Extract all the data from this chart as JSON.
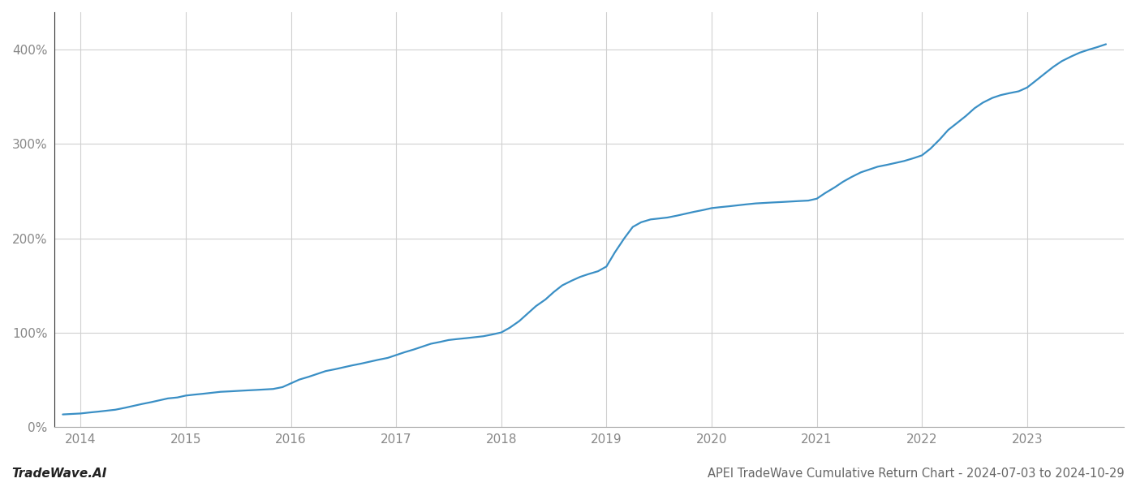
{
  "title": "APEI TradeWave Cumulative Return Chart - 2024-07-03 to 2024-10-29",
  "watermark": "TradeWave.AI",
  "line_color": "#3a8fc5",
  "line_width": 1.6,
  "background_color": "#ffffff",
  "grid_color": "#d0d0d0",
  "x_years": [
    2014,
    2015,
    2016,
    2017,
    2018,
    2019,
    2020,
    2021,
    2022,
    2023
  ],
  "x_data": [
    2013.83,
    2014.0,
    2014.08,
    2014.17,
    2014.25,
    2014.33,
    2014.42,
    2014.5,
    2014.58,
    2014.67,
    2014.75,
    2014.83,
    2014.92,
    2015.0,
    2015.08,
    2015.17,
    2015.25,
    2015.33,
    2015.42,
    2015.5,
    2015.58,
    2015.67,
    2015.75,
    2015.83,
    2015.92,
    2016.0,
    2016.08,
    2016.17,
    2016.25,
    2016.33,
    2016.42,
    2016.5,
    2016.58,
    2016.67,
    2016.75,
    2016.83,
    2016.92,
    2017.0,
    2017.08,
    2017.17,
    2017.25,
    2017.33,
    2017.42,
    2017.5,
    2017.58,
    2017.67,
    2017.75,
    2017.83,
    2017.92,
    2018.0,
    2018.08,
    2018.17,
    2018.25,
    2018.33,
    2018.42,
    2018.5,
    2018.58,
    2018.67,
    2018.75,
    2018.83,
    2018.92,
    2019.0,
    2019.08,
    2019.17,
    2019.25,
    2019.33,
    2019.42,
    2019.5,
    2019.58,
    2019.67,
    2019.75,
    2019.83,
    2019.92,
    2020.0,
    2020.08,
    2020.17,
    2020.25,
    2020.33,
    2020.42,
    2020.5,
    2020.58,
    2020.67,
    2020.75,
    2020.83,
    2020.92,
    2021.0,
    2021.08,
    2021.17,
    2021.25,
    2021.33,
    2021.42,
    2021.5,
    2021.58,
    2021.67,
    2021.75,
    2021.83,
    2021.92,
    2022.0,
    2022.08,
    2022.17,
    2022.25,
    2022.33,
    2022.42,
    2022.5,
    2022.58,
    2022.67,
    2022.75,
    2022.83,
    2022.92,
    2023.0,
    2023.08,
    2023.17,
    2023.25,
    2023.33,
    2023.42,
    2023.5,
    2023.58,
    2023.67,
    2023.75
  ],
  "y_data": [
    13,
    14,
    15,
    16,
    17,
    18,
    20,
    22,
    24,
    26,
    28,
    30,
    31,
    33,
    34,
    35,
    36,
    37,
    37.5,
    38,
    38.5,
    39,
    39.5,
    40,
    42,
    46,
    50,
    53,
    56,
    59,
    61,
    63,
    65,
    67,
    69,
    71,
    73,
    76,
    79,
    82,
    85,
    88,
    90,
    92,
    93,
    94,
    95,
    96,
    98,
    100,
    105,
    112,
    120,
    128,
    135,
    143,
    150,
    155,
    159,
    162,
    165,
    170,
    185,
    200,
    212,
    217,
    220,
    221,
    222,
    224,
    226,
    228,
    230,
    232,
    233,
    234,
    235,
    236,
    237,
    237.5,
    238,
    238.5,
    239,
    239.5,
    240,
    242,
    248,
    254,
    260,
    265,
    270,
    273,
    276,
    278,
    280,
    282,
    285,
    288,
    295,
    305,
    315,
    322,
    330,
    338,
    344,
    349,
    352,
    354,
    356,
    360,
    367,
    375,
    382,
    388,
    393,
    397,
    400,
    403,
    406
  ],
  "ylim": [
    0,
    440
  ],
  "yticks": [
    0,
    100,
    200,
    300,
    400
  ],
  "xlim": [
    2013.75,
    2023.92
  ],
  "title_fontsize": 10.5,
  "watermark_fontsize": 11,
  "tick_fontsize": 11,
  "tick_color": "#888888",
  "left_spine_color": "#333333",
  "bottom_spine_color": "#aaaaaa"
}
